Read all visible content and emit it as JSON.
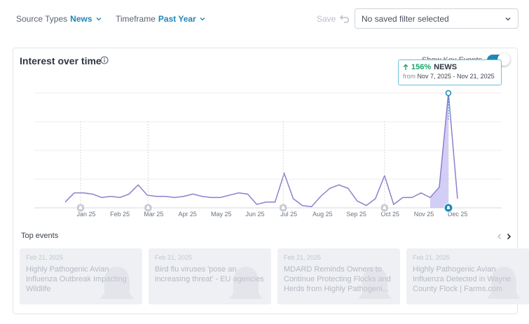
{
  "filters": {
    "source_label": "Source Types",
    "source_value": "News",
    "timeframe_label": "Timeframe",
    "timeframe_value": "Past Year",
    "save_label": "Save",
    "saved_filter_value": "No saved filter selected"
  },
  "card": {
    "title": "Interest over time",
    "toggle_label": "Show Key Events",
    "toggle_on": true
  },
  "tooltip": {
    "change": "156%",
    "series": "NEWS",
    "from_label": "from",
    "range": "Nov 7, 2025 - Nov 21, 2025"
  },
  "chart_data": {
    "type": "line",
    "x_ticks": [
      "Jan 25",
      "Feb 25",
      "Mar 25",
      "Apr 25",
      "May 25",
      "Jun 25",
      "Jul 25",
      "Aug 25",
      "Sep 25",
      "Oct 25",
      "Nov 25",
      "Dec 25"
    ],
    "series": [
      {
        "values": [
          5,
          13,
          13,
          12,
          9,
          10,
          9,
          12,
          20,
          11,
          10,
          10,
          9,
          10,
          12,
          10,
          9,
          9,
          11,
          13,
          12,
          3,
          5,
          5,
          30,
          8,
          2,
          1,
          10,
          17,
          20,
          17,
          6,
          2,
          8,
          28,
          3,
          9,
          9,
          13,
          9,
          18,
          100,
          8
        ]
      }
    ],
    "highlight_point_index": 42,
    "key_event_markers": [
      "Jan 25",
      "Mar 25",
      "Jul 25",
      "Oct 25",
      "Dec 25"
    ],
    "grid": true,
    "colors": {
      "line": "#8b80cf",
      "area": "#c8c2f2",
      "accent": "#1e88b8"
    }
  },
  "top_events": {
    "title": "Top events",
    "items": [
      {
        "date": "Feb 21, 2025",
        "title": "Highly Pathogenic Avian Influenza Outbreak Impacting Wildlife"
      },
      {
        "date": "Feb 21, 2025",
        "title": "Bird flu viruses 'pose an increasing threat' - EU agencies"
      },
      {
        "date": "Feb 21, 2025",
        "title": "MDARD Reminds Owners to Continue Protecting Flocks and Herds from Highly Pathogeni..."
      },
      {
        "date": "Feb 21, 2025",
        "title": "Highly Pathogenic Avian Influenza Detected in Wayne County Flock | Farms.com"
      }
    ]
  }
}
